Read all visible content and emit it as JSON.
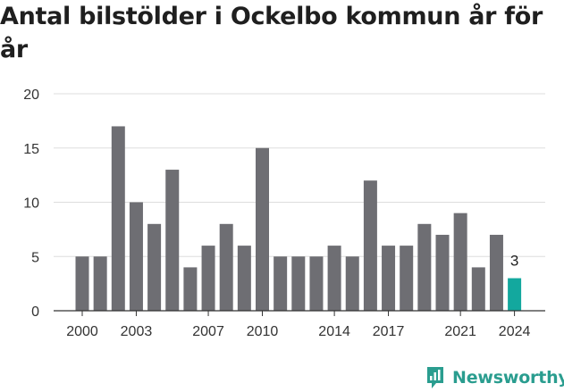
{
  "title": "Antal bilstölder i Ockelbo kommun år för år",
  "brand": {
    "name": "Newsworthy",
    "icon": "chart-logo-icon",
    "color": "#2a9d8f"
  },
  "colors": {
    "bar": "#6e6e73",
    "highlight": "#13a89e",
    "grid": "#dddddd",
    "axis": "#333333"
  },
  "chart_data": {
    "type": "bar",
    "title": "Antal bilstölder i Ockelbo kommun år för år",
    "xlabel": "",
    "ylabel": "",
    "categories": [
      2000,
      2001,
      2002,
      2003,
      2004,
      2005,
      2006,
      2007,
      2008,
      2009,
      2010,
      2011,
      2012,
      2013,
      2014,
      2015,
      2016,
      2017,
      2018,
      2019,
      2020,
      2021,
      2022,
      2023,
      2024
    ],
    "values": [
      5,
      5,
      17,
      10,
      8,
      13,
      4,
      6,
      8,
      6,
      15,
      5,
      5,
      5,
      6,
      5,
      12,
      6,
      6,
      8,
      7,
      9,
      4,
      7,
      3
    ],
    "x_tick_labels": [
      "2000",
      "2003",
      "2007",
      "2010",
      "2014",
      "2017",
      "2021",
      "2024"
    ],
    "y_ticks": [
      "0",
      "5",
      "10",
      "15",
      "20"
    ],
    "ylim": [
      0,
      20
    ],
    "highlight": {
      "category": 2024,
      "label": "3"
    },
    "grid": true,
    "legend": "none"
  }
}
